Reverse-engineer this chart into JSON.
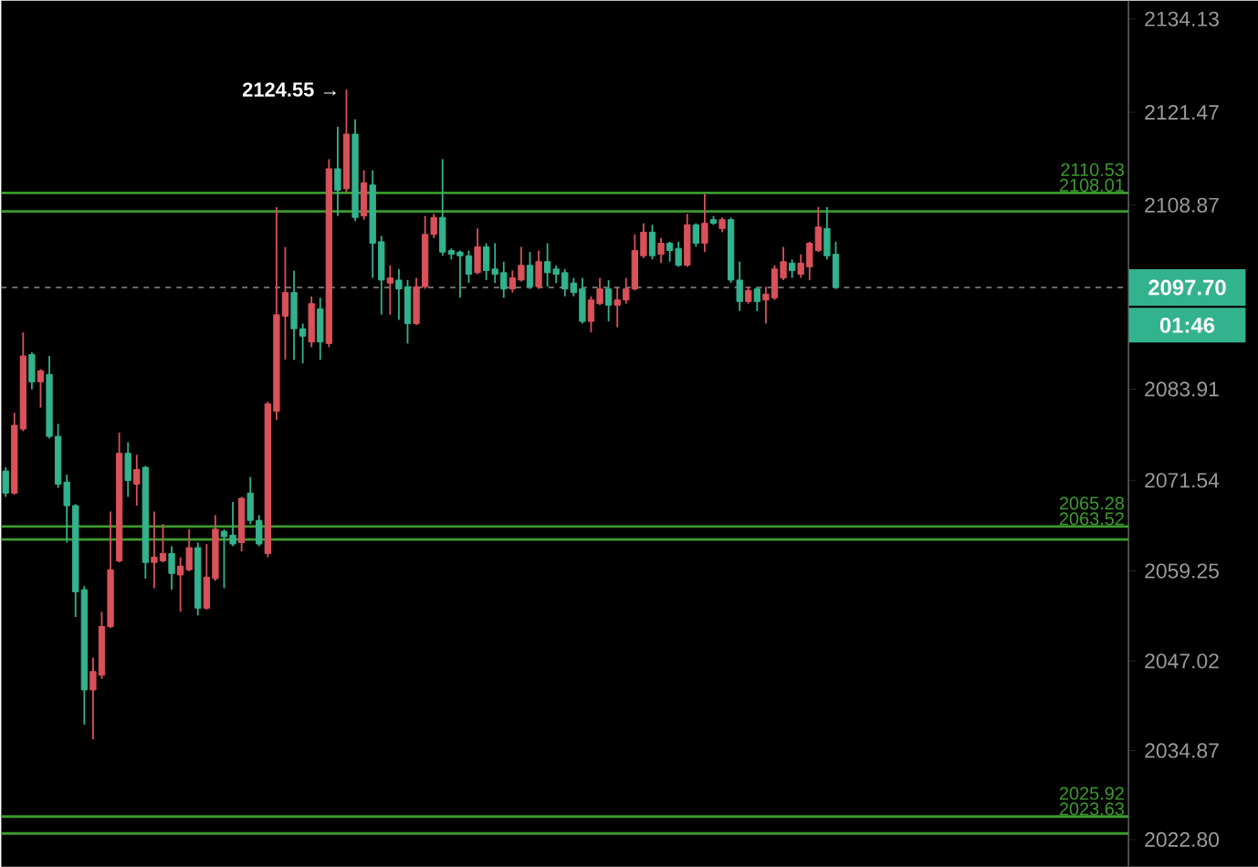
{
  "chart_data": {
    "type": "candlestick",
    "categories": [
      null,
      null,
      null,
      null,
      null,
      null,
      null,
      null,
      null,
      null,
      null,
      null,
      null,
      null,
      null,
      null,
      null,
      null,
      null,
      null,
      null,
      null,
      null,
      null,
      null,
      null,
      null,
      null,
      null,
      null,
      null,
      null,
      null,
      null,
      null,
      null,
      null,
      null,
      null,
      null,
      null,
      null,
      null,
      null,
      null,
      null,
      null,
      null,
      null,
      null,
      null,
      null,
      null,
      null,
      null,
      null,
      null,
      null,
      null,
      null,
      null,
      null,
      null,
      null,
      null,
      null,
      null,
      null,
      null,
      null,
      null,
      null,
      null,
      null,
      null,
      null,
      null,
      null,
      null,
      null,
      null,
      null,
      null,
      null,
      null,
      null,
      null,
      null,
      null,
      null,
      null,
      null,
      null,
      null,
      null,
      null,
      null,
      null,
      null,
      null,
      null,
      null,
      null,
      null,
      null,
      null,
      null,
      null,
      null,
      null,
      null,
      null,
      null,
      null,
      null,
      null,
      null,
      null,
      null,
      null,
      null,
      null,
      null,
      null,
      null,
      null,
      null,
      null,
      null
    ],
    "ohlc": [
      [
        2072.8,
        2073.3,
        2069.3,
        2069.8
      ],
      [
        2069.8,
        2080.7,
        2069.6,
        2079.0
      ],
      [
        2078.5,
        2091.6,
        2078.2,
        2088.4
      ],
      [
        2088.6,
        2088.9,
        2083.9,
        2084.9
      ],
      [
        2084.9,
        2086.6,
        2081.4,
        2086.4
      ],
      [
        2085.9,
        2088.4,
        2077.2,
        2077.5
      ],
      [
        2077.5,
        2079.2,
        2070.5,
        2071.0
      ],
      [
        2071.3,
        2072.3,
        2063.1,
        2068.1
      ],
      [
        2068.1,
        2068.3,
        2053.0,
        2056.4
      ],
      [
        2056.7,
        2057.2,
        2038.4,
        2043.1
      ],
      [
        2043.1,
        2047.5,
        2036.4,
        2045.6
      ],
      [
        2045.1,
        2053.7,
        2044.6,
        2051.7
      ],
      [
        2051.7,
        2067.3,
        2051.5,
        2059.4
      ],
      [
        2060.6,
        2078.0,
        2060.4,
        2075.2
      ],
      [
        2075.2,
        2076.7,
        2069.3,
        2071.5
      ],
      [
        2071.0,
        2075.0,
        2068.1,
        2073.0
      ],
      [
        2073.3,
        2073.5,
        2058.2,
        2060.4
      ],
      [
        2060.4,
        2067.3,
        2056.9,
        2061.1
      ],
      [
        2060.6,
        2065.6,
        2060.4,
        2061.6
      ],
      [
        2061.6,
        2062.6,
        2056.7,
        2058.9
      ],
      [
        2058.7,
        2061.1,
        2053.7,
        2059.9
      ],
      [
        2059.4,
        2064.9,
        2059.2,
        2062.4
      ],
      [
        2062.4,
        2063.1,
        2053.2,
        2054.2
      ],
      [
        2054.2,
        2062.9,
        2054.0,
        2058.4
      ],
      [
        2058.2,
        2066.8,
        2057.9,
        2064.9
      ],
      [
        2064.6,
        2064.9,
        2056.9,
        2063.9
      ],
      [
        2064.1,
        2068.6,
        2062.6,
        2062.9
      ],
      [
        2063.1,
        2069.3,
        2061.9,
        2069.1
      ],
      [
        2069.8,
        2072.0,
        2065.6,
        2066.1
      ],
      [
        2066.1,
        2066.8,
        2062.6,
        2062.9
      ],
      [
        2061.6,
        2082.2,
        2061.1,
        2081.9
      ],
      [
        2080.9,
        2108.6,
        2079.7,
        2094.0
      ],
      [
        2093.8,
        2103.2,
        2087.9,
        2097.0
      ],
      [
        2097.0,
        2100.0,
        2087.9,
        2092.1
      ],
      [
        2092.1,
        2092.8,
        2087.4,
        2091.1
      ],
      [
        2090.3,
        2096.5,
        2089.6,
        2095.5
      ],
      [
        2094.8,
        2096.3,
        2087.9,
        2090.3
      ],
      [
        2090.1,
        2115.1,
        2089.6,
        2113.8
      ],
      [
        2113.8,
        2119.5,
        2107.4,
        2110.9
      ],
      [
        2111.1,
        2124.55,
        2110.6,
        2118.5
      ],
      [
        2118.5,
        2120.5,
        2106.7,
        2107.2
      ],
      [
        2107.4,
        2113.6,
        2106.9,
        2111.9
      ],
      [
        2111.6,
        2113.6,
        2099.0,
        2103.7
      ],
      [
        2103.9,
        2104.7,
        2094.0,
        2098.7
      ],
      [
        2098.3,
        2100.7,
        2094.0,
        2099.0
      ],
      [
        2098.7,
        2100.2,
        2093.3,
        2097.5
      ],
      [
        2097.8,
        2098.7,
        2090.1,
        2092.8
      ],
      [
        2092.8,
        2099.0,
        2092.6,
        2097.8
      ],
      [
        2097.8,
        2107.4,
        2097.5,
        2104.9
      ],
      [
        2104.9,
        2107.7,
        2104.4,
        2107.2
      ],
      [
        2107.2,
        2115.1,
        2102.0,
        2102.5
      ],
      [
        2102.7,
        2103.0,
        2101.5,
        2102.2
      ],
      [
        2102.5,
        2102.7,
        2096.3,
        2102.0
      ],
      [
        2102.0,
        2102.7,
        2098.3,
        2099.5
      ],
      [
        2099.7,
        2105.7,
        2099.5,
        2103.2
      ],
      [
        2103.2,
        2103.7,
        2098.7,
        2100.0
      ],
      [
        2100.2,
        2103.7,
        2098.3,
        2099.5
      ],
      [
        2099.7,
        2101.2,
        2096.3,
        2097.5
      ],
      [
        2097.5,
        2100.0,
        2097.0,
        2099.0
      ],
      [
        2098.7,
        2103.2,
        2098.5,
        2100.7
      ],
      [
        2100.7,
        2102.5,
        2097.5,
        2097.8
      ],
      [
        2097.8,
        2102.7,
        2097.5,
        2101.2
      ],
      [
        2101.2,
        2103.7,
        2097.8,
        2099.7
      ],
      [
        2100.2,
        2100.7,
        2098.3,
        2099.5
      ],
      [
        2099.7,
        2100.2,
        2096.5,
        2097.5
      ],
      [
        2098.3,
        2099.0,
        2096.5,
        2097.0
      ],
      [
        2097.5,
        2099.0,
        2092.8,
        2093.1
      ],
      [
        2093.1,
        2096.5,
        2091.6,
        2096.0
      ],
      [
        2095.5,
        2099.0,
        2095.3,
        2097.5
      ],
      [
        2097.5,
        2098.7,
        2093.1,
        2095.3
      ],
      [
        2095.3,
        2097.8,
        2092.3,
        2096.0
      ],
      [
        2096.0,
        2099.0,
        2095.5,
        2097.5
      ],
      [
        2097.5,
        2104.9,
        2097.3,
        2102.7
      ],
      [
        2102.0,
        2106.4,
        2101.7,
        2105.2
      ],
      [
        2105.2,
        2106.2,
        2101.5,
        2102.0
      ],
      [
        2102.2,
        2104.4,
        2101.0,
        2103.7
      ],
      [
        2103.7,
        2103.9,
        2101.2,
        2102.7
      ],
      [
        2103.0,
        2103.9,
        2100.5,
        2100.7
      ],
      [
        2100.7,
        2107.7,
        2100.5,
        2106.2
      ],
      [
        2106.2,
        2106.4,
        2103.2,
        2103.7
      ],
      [
        2103.7,
        2110.4,
        2102.5,
        2106.4
      ],
      [
        2106.9,
        2107.4,
        2106.2,
        2106.4
      ],
      [
        2105.7,
        2107.2,
        2105.2,
        2106.9
      ],
      [
        2106.9,
        2107.2,
        2098.3,
        2098.7
      ],
      [
        2098.7,
        2101.2,
        2094.5,
        2095.8
      ],
      [
        2095.8,
        2097.8,
        2095.5,
        2097.3
      ],
      [
        2097.5,
        2097.8,
        2094.5,
        2095.8
      ],
      [
        2096.0,
        2097.8,
        2092.8,
        2096.8
      ],
      [
        2096.3,
        2100.7,
        2096.0,
        2100.2
      ],
      [
        2099.0,
        2103.2,
        2098.7,
        2101.2
      ],
      [
        2101.0,
        2101.5,
        2099.0,
        2100.0
      ],
      [
        2099.5,
        2102.2,
        2099.0,
        2101.0
      ],
      [
        2100.5,
        2103.9,
        2098.7,
        2103.7
      ],
      [
        2102.7,
        2108.6,
        2102.5,
        2105.9
      ],
      [
        2105.7,
        2108.6,
        2101.5,
        2102.0
      ],
      [
        2102.2,
        2103.9,
        2097.5,
        2097.7
      ],
      null,
      null,
      null,
      null,
      null,
      null,
      null,
      null,
      null,
      null,
      null,
      null,
      null,
      null,
      null,
      null,
      null,
      null,
      null,
      null,
      null,
      null,
      null,
      null,
      null,
      null,
      null,
      null,
      null,
      null,
      null,
      null,
      null
    ],
    "colors": [
      "#33b28e",
      "#d9515a",
      "#d9515a",
      "#33b28e",
      "#d9515a",
      "#33b28e",
      "#33b28e",
      "#33b28e",
      "#33b28e",
      "#33b28e",
      "#d9515a",
      "#d9515a",
      "#d9515a",
      "#d9515a",
      "#33b28e",
      "#d9515a",
      "#33b28e",
      "#d9515a",
      "#d9515a",
      "#33b28e",
      "#d9515a",
      "#d9515a",
      "#33b28e",
      "#d9515a",
      "#d9515a",
      "#33b28e",
      "#33b28e",
      "#d9515a",
      "#33b28e",
      "#33b28e",
      "#d9515a",
      "#d9515a",
      "#d9515a",
      "#33b28e",
      "#33b28e",
      "#d9515a",
      "#33b28e",
      "#d9515a",
      "#33b28e",
      "#d9515a",
      "#33b28e",
      "#d9515a",
      "#33b28e",
      "#33b28e",
      "#d9515a",
      "#33b28e",
      "#33b28e",
      "#d9515a",
      "#d9515a",
      "#d9515a",
      "#33b28e",
      "#33b28e",
      "#33b28e",
      "#33b28e",
      "#d9515a",
      "#33b28e",
      "#33b28e",
      "#33b28e",
      "#d9515a",
      "#d9515a",
      "#33b28e",
      "#d9515a",
      "#33b28e",
      "#33b28e",
      "#33b28e",
      "#33b28e",
      "#33b28e",
      "#d9515a",
      "#d9515a",
      "#33b28e",
      "#d9515a",
      "#d9515a",
      "#d9515a",
      "#d9515a",
      "#33b28e",
      "#d9515a",
      "#33b28e",
      "#33b28e",
      "#d9515a",
      "#33b28e",
      "#d9515a",
      "#33b28e",
      "#d9515a",
      "#33b28e",
      "#33b28e",
      "#d9515a",
      "#33b28e",
      "#d9515a",
      "#d9515a",
      "#d9515a",
      "#33b28e",
      "#d9515a",
      "#d9515a",
      "#d9515a",
      "#33b28e",
      "#33b28e",
      null,
      null,
      null,
      null,
      null,
      null,
      null,
      null,
      null,
      null,
      null,
      null,
      null,
      null,
      null,
      null,
      null,
      null,
      null,
      null,
      null,
      null,
      null,
      null,
      null,
      null,
      null,
      null,
      null,
      null,
      null,
      null,
      null
    ],
    "ylim": [
      2019.1,
      2136.6
    ],
    "yticks": [
      2134.13,
      2121.47,
      2108.87,
      2083.91,
      2071.54,
      2059.25,
      2047.02,
      2034.87,
      {
        "value": 2022.8,
        "label": "2022.80"
      }
    ],
    "tick_labels": "y",
    "ref_lines": [
      {
        "axis": "y",
        "value": 2110.53,
        "label": "2110.53",
        "color": "#3c9a2e",
        "line_style": "solid"
      },
      {
        "axis": "y",
        "value": 2108.01,
        "label": "2108.01",
        "color": "#3c9a2e",
        "line_style": "solid"
      },
      {
        "axis": "y",
        "value": 2065.28,
        "label": "2065.28",
        "color": "#3c9a2e",
        "line_style": "solid"
      },
      {
        "axis": "y",
        "value": 2063.52,
        "label": "2063.52",
        "color": "#3c9a2e",
        "line_style": "solid"
      },
      {
        "axis": "y",
        "value": 2025.92,
        "label": "2025.92",
        "color": "#3c9a2e",
        "line_style": "solid"
      },
      {
        "axis": "y",
        "value": 2023.63,
        "label": "2023.63",
        "color": "#3c9a2e",
        "line_style": "solid"
      },
      {
        "axis": "y",
        "value": 2097.7,
        "label": "2097.70",
        "color": "#8c8c8c",
        "line_style": "dashed"
      }
    ],
    "annotations": [
      "2124.55 →",
      "01:46"
    ]
  }
}
